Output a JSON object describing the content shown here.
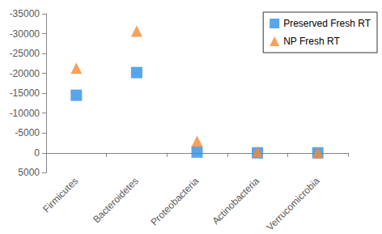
{
  "chart_data": {
    "type": "scatter",
    "categories": [
      "Firmicutes",
      "Bacteroidetes",
      "Proteobacteria",
      "Actinobacteria",
      "Verrucomicrobia"
    ],
    "series": [
      {
        "name": "Preserved Fresh RT",
        "color": "#2e8fe6",
        "marker": "square",
        "values": [
          -14500,
          -20200,
          -200,
          0,
          0
        ]
      },
      {
        "name": "NP Fresh RT",
        "color": "#f58a32",
        "marker": "triangle",
        "values": [
          -21300,
          -30600,
          -2900,
          -300,
          -100
        ]
      }
    ],
    "ylim": [
      -35000,
      5000
    ],
    "yticks": [
      -35000,
      -30000,
      -25000,
      -20000,
      -15000,
      -10000,
      -5000,
      0,
      5000
    ],
    "grid": false,
    "legend": "top right"
  }
}
